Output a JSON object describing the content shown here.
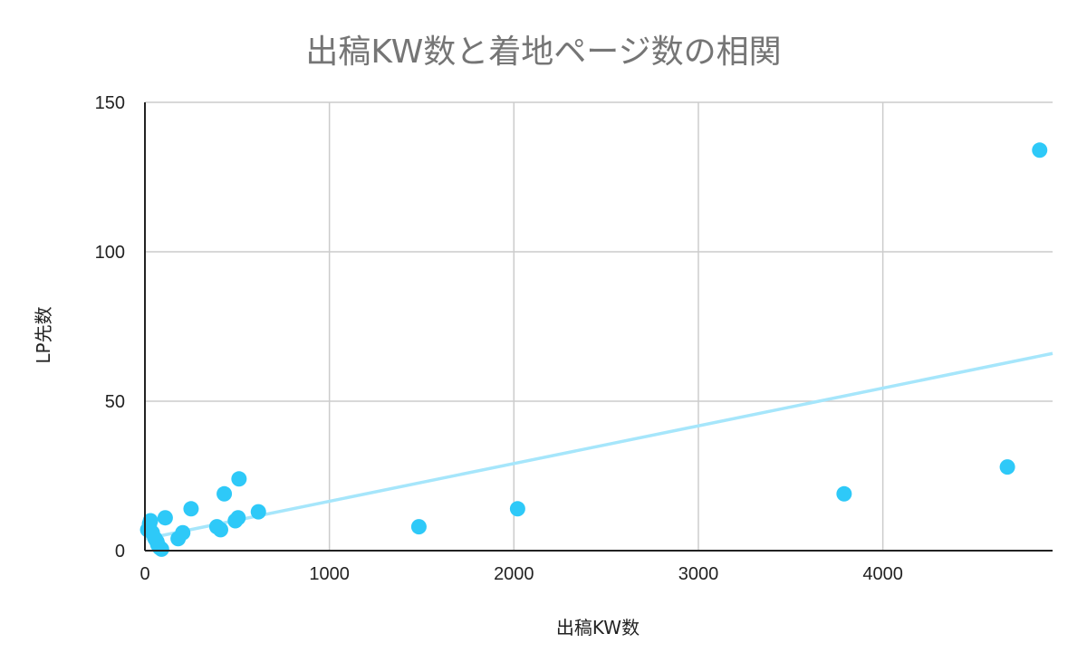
{
  "chart_data": {
    "type": "scatter",
    "title": "出稿KW数と着地ページ数の相関",
    "xlabel": "出稿KW数",
    "ylabel": "LP先数",
    "xlim": [
      0,
      4920
    ],
    "ylim": [
      0,
      150
    ],
    "xticks": [
      0,
      1000,
      2000,
      3000,
      4000
    ],
    "yticks": [
      0,
      50,
      100,
      150
    ],
    "grid": true,
    "colors": {
      "points": "#2ec9f8",
      "trendline": "#a6e6fb",
      "grid": "#cccccc",
      "axis": "#222222"
    },
    "trendline": {
      "type": "linear",
      "intercept": 3.9,
      "slope": 0.01262
    },
    "points": [
      {
        "x": 15,
        "y": 7
      },
      {
        "x": 25,
        "y": 9
      },
      {
        "x": 30,
        "y": 10
      },
      {
        "x": 40,
        "y": 6
      },
      {
        "x": 55,
        "y": 4
      },
      {
        "x": 65,
        "y": 3
      },
      {
        "x": 70,
        "y": 2
      },
      {
        "x": 80,
        "y": 1
      },
      {
        "x": 90,
        "y": 0.5
      },
      {
        "x": 110,
        "y": 11
      },
      {
        "x": 180,
        "y": 4
      },
      {
        "x": 205,
        "y": 6
      },
      {
        "x": 250,
        "y": 14
      },
      {
        "x": 390,
        "y": 8
      },
      {
        "x": 410,
        "y": 7
      },
      {
        "x": 430,
        "y": 19
      },
      {
        "x": 490,
        "y": 10
      },
      {
        "x": 505,
        "y": 11
      },
      {
        "x": 510,
        "y": 24
      },
      {
        "x": 615,
        "y": 13
      },
      {
        "x": 1485,
        "y": 8
      },
      {
        "x": 2020,
        "y": 14
      },
      {
        "x": 3790,
        "y": 19
      },
      {
        "x": 4675,
        "y": 28
      },
      {
        "x": 4850,
        "y": 134
      }
    ]
  }
}
